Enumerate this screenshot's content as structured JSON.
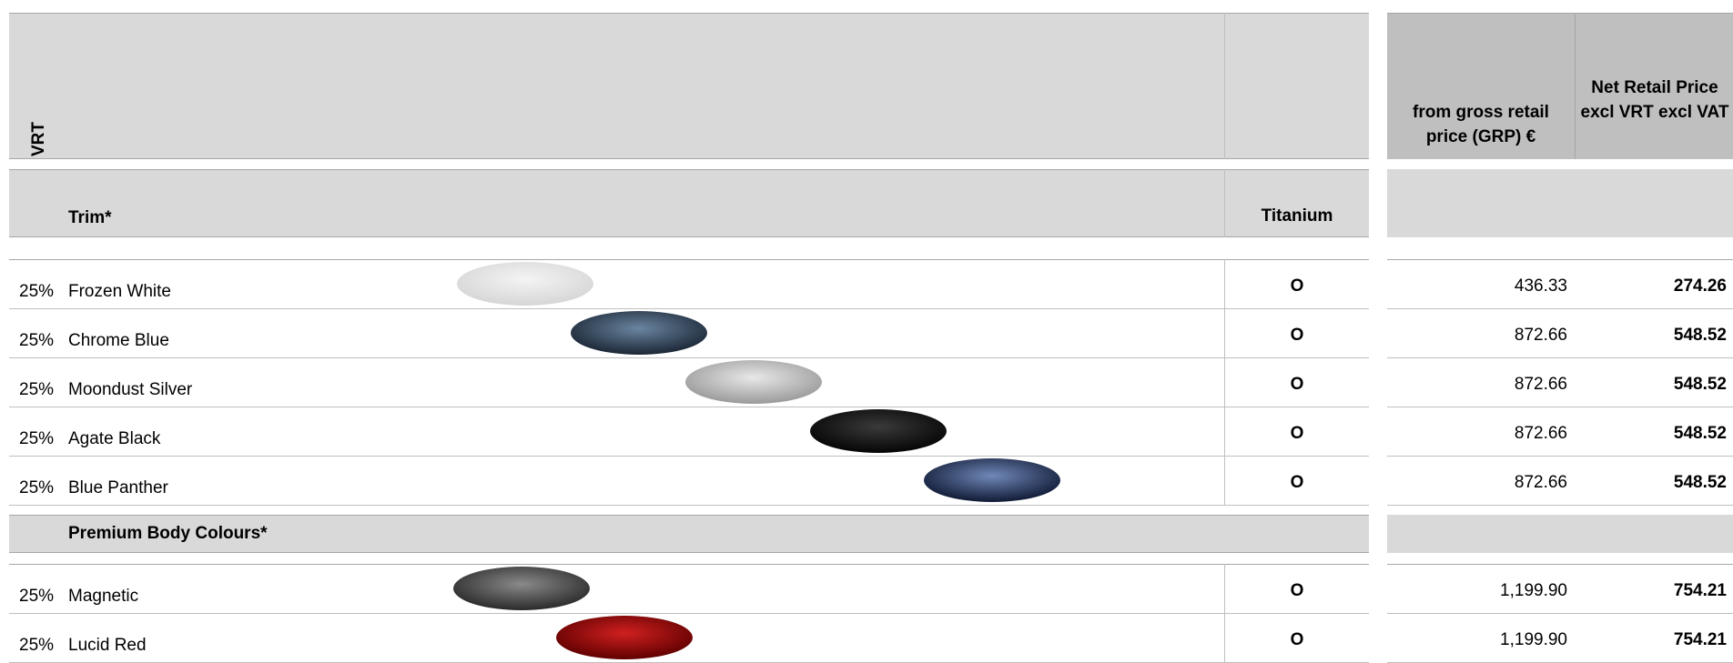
{
  "header": {
    "vrt": "VRT",
    "grp": "from gross retail price (GRP) €",
    "net": "Net Retail Price excl VRT excl VAT"
  },
  "sections": [
    {
      "title": "Trim*",
      "column": "Titanium",
      "rows": [
        {
          "vrt": "25%",
          "name": "Frozen White",
          "titanium": "O",
          "grp": "436.33",
          "net": "274.26"
        },
        {
          "vrt": "25%",
          "name": "Chrome Blue",
          "titanium": "O",
          "grp": "872.66",
          "net": "548.52"
        },
        {
          "vrt": "25%",
          "name": "Moondust Silver",
          "titanium": "O",
          "grp": "872.66",
          "net": "548.52"
        },
        {
          "vrt": "25%",
          "name": "Agate Black",
          "titanium": "O",
          "grp": "872.66",
          "net": "548.52"
        },
        {
          "vrt": "25%",
          "name": "Blue Panther",
          "titanium": "O",
          "grp": "872.66",
          "net": "548.52"
        }
      ]
    },
    {
      "title": "Premium Body Colours*",
      "rows": [
        {
          "vrt": "25%",
          "name": "Magnetic",
          "titanium": "O",
          "grp": "1,199.90",
          "net": "754.21"
        },
        {
          "vrt": "25%",
          "name": "Lucid Red",
          "titanium": "O",
          "grp": "1,199.90",
          "net": "754.21"
        }
      ]
    }
  ]
}
